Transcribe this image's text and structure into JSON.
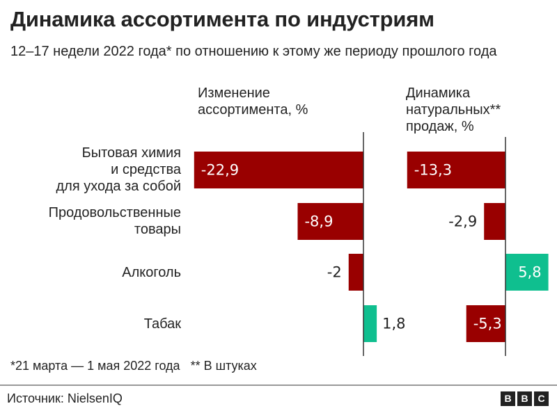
{
  "title": "Динамика ассортимента по индустриям",
  "subtitle": "12–17 недели 2022 года* по отношению к этому же периоду прошлого года",
  "chart_data": {
    "type": "bar",
    "orientation": "horizontal",
    "categories": [
      "Бытовая химия и средства для ухода за собой",
      "Продовольственные товары",
      "Алкоголь",
      "Табак"
    ],
    "category_lines": [
      [
        "Бытовая химия",
        "и средства",
        "для ухода за собой"
      ],
      [
        "Продовольственные",
        "товары"
      ],
      [
        "Алкоголь"
      ],
      [
        "Табак"
      ]
    ],
    "panels": [
      {
        "title": "Изменение ассортимента, %",
        "title_lines": [
          "Изменение",
          "ассортимента, %"
        ],
        "values": [
          -22.9,
          -8.9,
          -2,
          1.8
        ],
        "labels": [
          "-22,9",
          "-8,9",
          "-2",
          "1,8"
        ]
      },
      {
        "title": "Динамика натуральных** продаж, %",
        "title_lines": [
          "Динамика",
          "натуральных**",
          "продаж, %"
        ],
        "values": [
          -13.3,
          -2.9,
          5.8,
          -5.3
        ],
        "labels": [
          "-13,3",
          "-2,9",
          "5,8",
          "-5,3"
        ]
      }
    ],
    "colors": {
      "negative": "#990000",
      "positive": "#0fbf8f"
    },
    "grid": false
  },
  "footnote": "*21 марта — 1 мая 2022 года   ** В штуках",
  "source": "Источник:  NielsenIQ",
  "logo": "BBC"
}
